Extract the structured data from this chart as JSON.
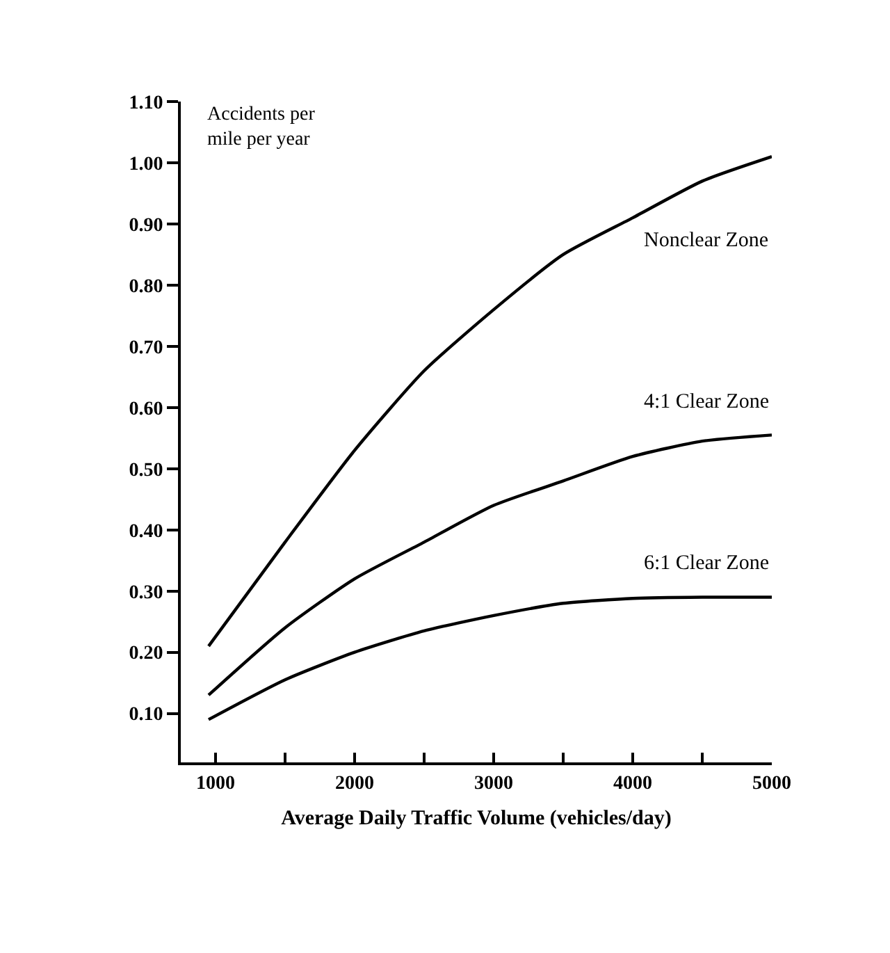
{
  "chart_data": {
    "type": "line",
    "xlabel": "Average Daily Traffic Volume (vehicles/day)",
    "ylabel": "Accidents per mile per year",
    "xlim": [
      750,
      5000
    ],
    "xticks": [
      1000,
      {
        "value": 1500,
        "label": null
      },
      2000,
      {
        "value": 2500,
        "label": null
      },
      3000,
      {
        "value": 3500,
        "label": null
      },
      4000,
      {
        "value": 4500,
        "label": null
      },
      5000
    ],
    "ylim": [
      0.02,
      1.1
    ],
    "yticks": [
      {
        "value": 0.1,
        "label": "0.10"
      },
      {
        "value": 0.2,
        "label": "0.20"
      },
      {
        "value": 0.3,
        "label": "0.30"
      },
      {
        "value": 0.4,
        "label": "0.40"
      },
      {
        "value": 0.5,
        "label": "0.50"
      },
      {
        "value": 0.6,
        "label": "0.60"
      },
      {
        "value": 0.7,
        "label": "0.70"
      },
      {
        "value": 0.8,
        "label": "0.80"
      },
      {
        "value": 0.9,
        "label": "0.90"
      },
      {
        "value": 1.0,
        "label": "1.00"
      },
      {
        "value": 1.1,
        "label": "1.10"
      }
    ],
    "x": [
      950,
      1500,
      2000,
      2500,
      3000,
      3500,
      4000,
      4500,
      5000
    ],
    "series": [
      {
        "name": "Nonclear Zone",
        "color": "#000000",
        "values": [
          0.21,
          0.38,
          0.53,
          0.66,
          0.76,
          0.85,
          0.91,
          0.97,
          1.01
        ]
      },
      {
        "name": "4:1 Clear Zone",
        "color": "#000000",
        "values": [
          0.13,
          0.24,
          0.32,
          0.38,
          0.44,
          0.48,
          0.52,
          0.545,
          0.555
        ]
      },
      {
        "name": "6:1 Clear Zone",
        "color": "#000000",
        "values": [
          0.09,
          0.155,
          0.2,
          0.235,
          0.26,
          0.28,
          0.288,
          0.29,
          0.29
        ]
      }
    ],
    "grid": false,
    "legend": false,
    "marker": "none",
    "line_style": "solid"
  }
}
